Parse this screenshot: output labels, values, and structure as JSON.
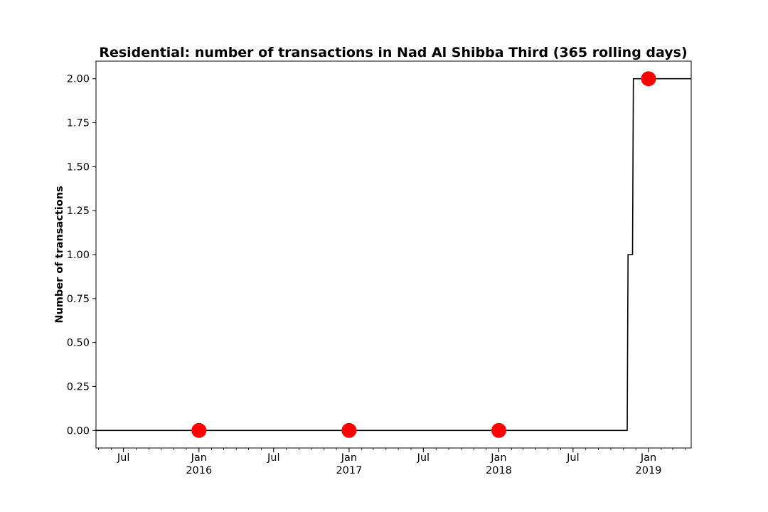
{
  "chart_data": {
    "type": "line",
    "title": "Residential: number of transactions in Nad Al Shibba Third (365 rolling days)",
    "xlabel": "",
    "ylabel": "Number of transactions",
    "xlim": [
      "2015-04-25",
      "2019-04-15"
    ],
    "ylim": [
      -0.1,
      2.1
    ],
    "grid": false,
    "legend": "none",
    "y_ticks": [
      0.0,
      0.25,
      0.5,
      0.75,
      1.0,
      1.25,
      1.5,
      1.75,
      2.0
    ],
    "y_tick_labels": [
      "0.00",
      "0.25",
      "0.50",
      "0.75",
      "1.00",
      "1.25",
      "1.50",
      "1.75",
      "2.00"
    ],
    "x_ticks": [
      {
        "date": "2015-07-01",
        "label": "Jul",
        "year": ""
      },
      {
        "date": "2016-01-01",
        "label": "Jan",
        "year": "2016"
      },
      {
        "date": "2016-07-01",
        "label": "Jul",
        "year": ""
      },
      {
        "date": "2017-01-01",
        "label": "Jan",
        "year": "2017"
      },
      {
        "date": "2017-07-01",
        "label": "Jul",
        "year": ""
      },
      {
        "date": "2018-01-01",
        "label": "Jan",
        "year": "2018"
      },
      {
        "date": "2018-07-01",
        "label": "Jul",
        "year": ""
      },
      {
        "date": "2019-01-01",
        "label": "Jan",
        "year": "2019"
      }
    ],
    "series": [
      {
        "kind": "step-line",
        "color": "#000000",
        "x": [
          "2015-04-25",
          "2018-11-10",
          "2018-11-12",
          "2018-11-23",
          "2018-11-25",
          "2019-04-15"
        ],
        "y": [
          0,
          0,
          1,
          1,
          2,
          2
        ]
      },
      {
        "kind": "markers",
        "color": "#ff0000",
        "x": [
          "2016-01-01",
          "2017-01-01",
          "2018-01-01",
          "2019-01-01"
        ],
        "y": [
          0,
          0,
          0,
          2
        ]
      }
    ]
  }
}
